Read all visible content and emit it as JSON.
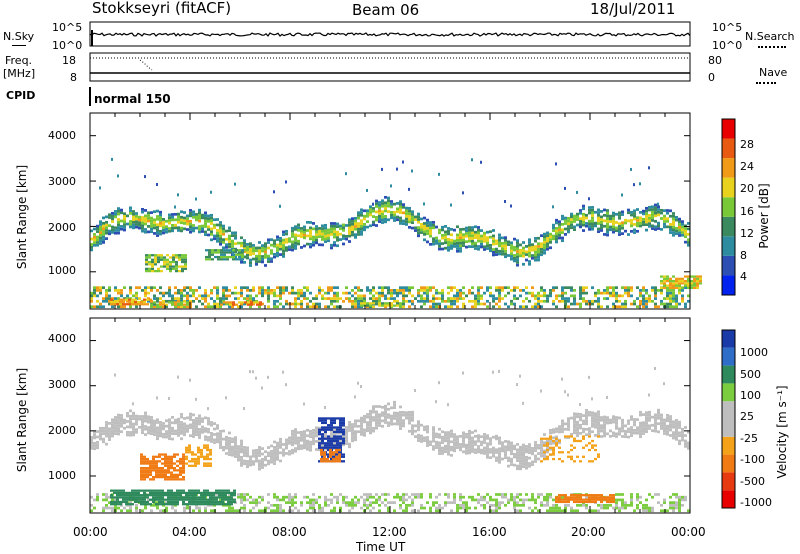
{
  "header": {
    "station": "Stokkseyri (fitACF)",
    "beam": "Beam 06",
    "date": "18/Jul/2011"
  },
  "panels": {
    "nsky_label": "N.Sky",
    "nsky_ticks": [
      "10^5",
      "10^0"
    ],
    "nsearch_label": "N.Search",
    "nsearch_ticks": [
      "10^5",
      "10^0"
    ],
    "freq_label_1": "Freq.",
    "freq_label_2": "[MHz]",
    "freq_ticks": [
      "18",
      "8"
    ],
    "nave_label": "Nave",
    "nave_ticks": [
      "80",
      "0"
    ],
    "cpid_label": "CPID",
    "cpid_value": "normal 150"
  },
  "chart_data": [
    {
      "type": "heatmap",
      "name": "power",
      "ylabel": "Slant Range [km]",
      "yticks": [
        "4000",
        "3000",
        "2000",
        "1000"
      ],
      "ylim": [
        180,
        4500
      ],
      "colorbar_label": "Power [dB]",
      "colorbar_ticks": [
        "28",
        "24",
        "20",
        "16",
        "12",
        "8",
        "4"
      ],
      "colors": [
        "#0022ee",
        "#2d4fb4",
        "#2e8ca0",
        "#3b8a5f",
        "#78c838",
        "#e8d21e",
        "#f09a18",
        "#e85a12",
        "#e80000"
      ]
    },
    {
      "type": "heatmap",
      "name": "velocity",
      "ylabel": "Slant Range [km]",
      "yticks": [
        "4000",
        "3000",
        "2000",
        "1000"
      ],
      "ylim": [
        180,
        4500
      ],
      "colorbar_label": "Velocity [m s⁻¹]",
      "colorbar_ticks": [
        "1000",
        "500",
        "100",
        "25",
        "-25",
        "-100",
        "-500",
        "-1000"
      ],
      "colors": [
        "#1a3aa8",
        "#2f6ec8",
        "#2e8a5c",
        "#7ccc40",
        "#bebebe",
        "#bebebe",
        "#f3a21a",
        "#f07a14",
        "#e83a10",
        "#e80000"
      ],
      "xlabel": "Time UT",
      "xticks": [
        "00:00",
        "04:00",
        "08:00",
        "12:00",
        "16:00",
        "20:00",
        "00:00"
      ]
    }
  ]
}
